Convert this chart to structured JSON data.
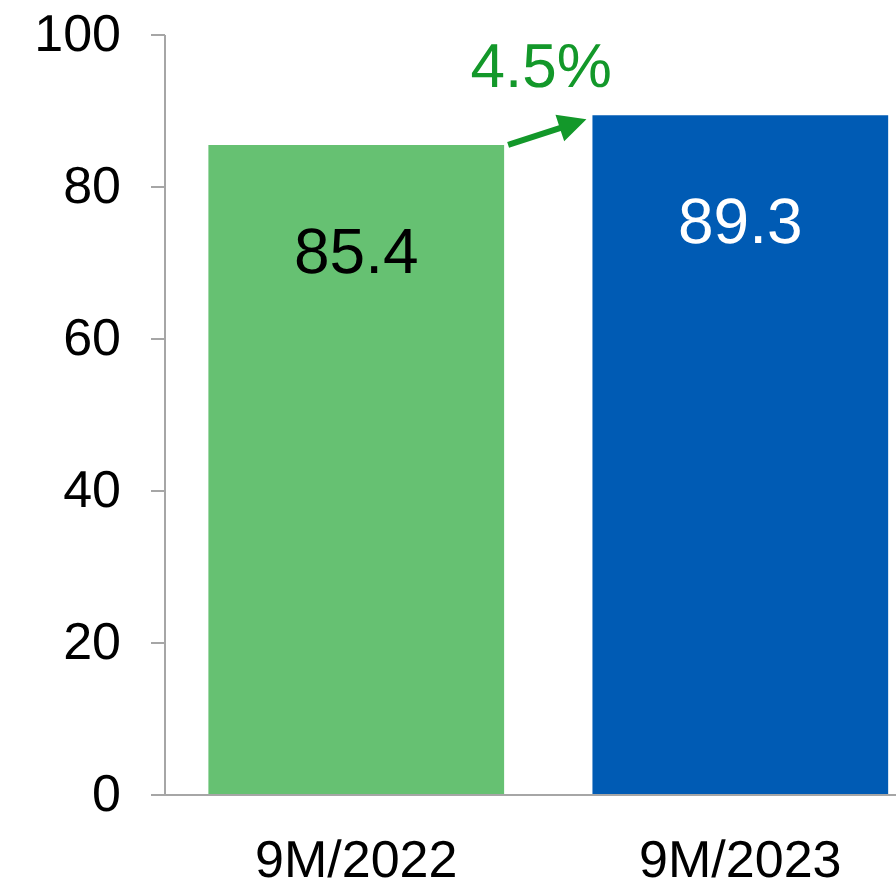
{
  "chart_data": {
    "type": "bar",
    "categories": [
      "9M/2022",
      "9M/2023"
    ],
    "values": [
      85.4,
      89.3
    ],
    "colors": [
      "#66c172",
      "#005bb4"
    ],
    "ylim": [
      0,
      100
    ],
    "yticks": [
      0,
      20,
      40,
      60,
      80,
      100
    ],
    "data_labels": true,
    "annotations": [
      "4.5%"
    ]
  }
}
